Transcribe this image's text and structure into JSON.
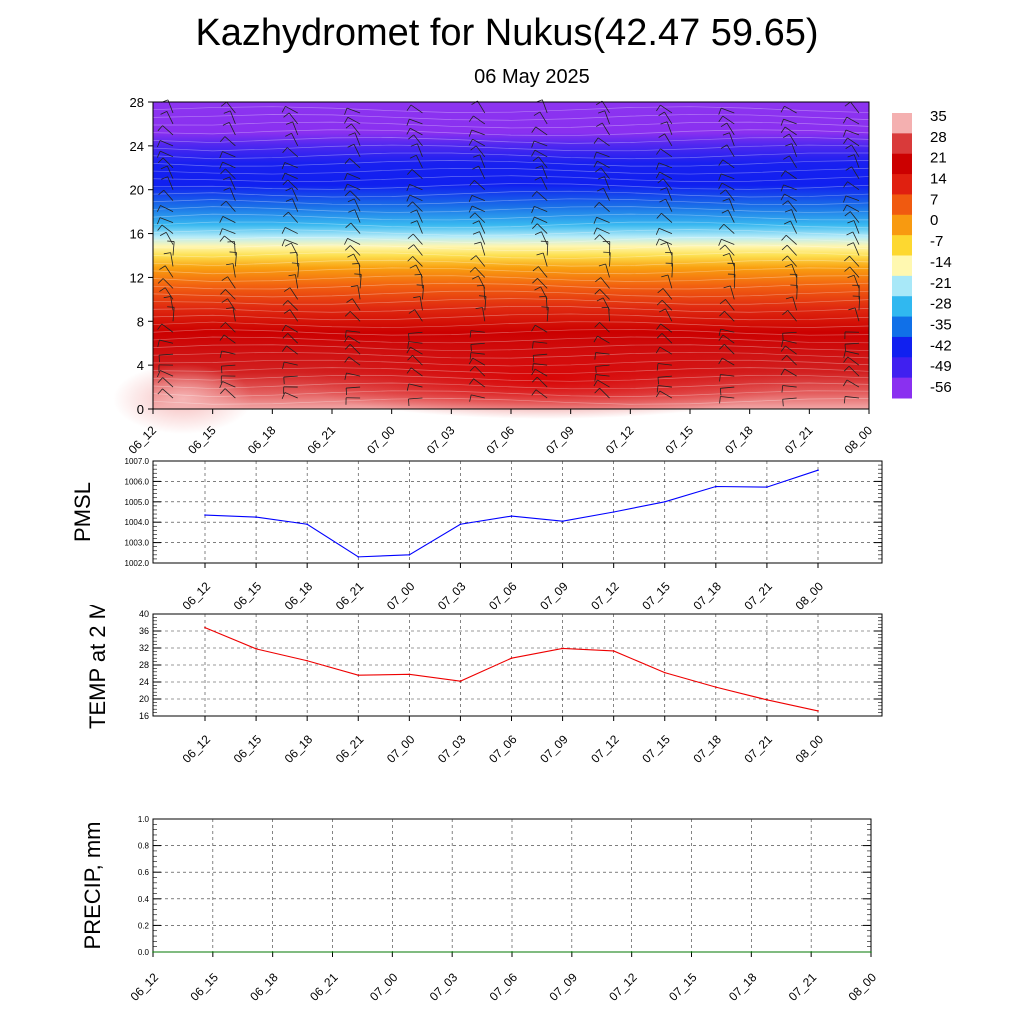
{
  "title": "Kazhydromet for Nukus(42.47 59.65)",
  "subtitle": "06 May 2025",
  "chart_data": [
    {
      "type": "heatmap",
      "title": "",
      "xlabel": "",
      "ylabel": "",
      "x_ticks": [
        "06_12",
        "06_15",
        "06_18",
        "06_21",
        "07_00",
        "07_03",
        "07_06",
        "07_09",
        "07_12",
        "07_15",
        "07_18",
        "07_21",
        "08_00"
      ],
      "y_ticks": [
        0,
        4,
        8,
        12,
        16,
        20,
        24,
        28
      ],
      "ylim": [
        0,
        28
      ],
      "colorbar_labels": [
        "35",
        "28",
        "21",
        "14",
        "7",
        "0",
        "-7",
        "-14",
        "-21",
        "-28",
        "-35",
        "-42",
        "-49",
        "-56"
      ],
      "colormap": [
        "#f4b0b0",
        "#d93a3a",
        "#cc0000",
        "#e02010",
        "#f05a10",
        "#f89a10",
        "#fdd830",
        "#fff8b0",
        "#a8e8f8",
        "#30b8f0",
        "#1070e8",
        "#1020f0",
        "#4020f0",
        "#8a30f0"
      ],
      "contour_field": "temperature by height",
      "wind_barbs": true
    },
    {
      "type": "line",
      "ylabel": "PMSL",
      "ylim": [
        1002.0,
        1007.0
      ],
      "y_ticks": [
        "1002.0",
        "1003.0",
        "1004.0",
        "1005.0",
        "1006.0",
        "1007.0"
      ],
      "categories": [
        "06_12",
        "06_15",
        "06_18",
        "06_21",
        "07_00",
        "07_03",
        "07_06",
        "07_09",
        "07_12",
        "07_15",
        "07_18",
        "07_21",
        "08_00"
      ],
      "values": [
        1004.35,
        1004.25,
        1003.9,
        1002.3,
        1002.4,
        1003.9,
        1004.3,
        1004.05,
        1004.5,
        1005.0,
        1005.75,
        1005.72,
        1006.55
      ],
      "color": "#0000ff",
      "grid": true
    },
    {
      "type": "line",
      "ylabel": "TEMP at 2 M",
      "ylim": [
        16,
        40
      ],
      "y_ticks": [
        "16",
        "20",
        "24",
        "28",
        "32",
        "36",
        "40"
      ],
      "categories": [
        "06_12",
        "06_15",
        "06_18",
        "06_21",
        "07_00",
        "07_03",
        "07_06",
        "07_09",
        "07_12",
        "07_15",
        "07_18",
        "07_21",
        "08_00"
      ],
      "values": [
        36.8,
        31.8,
        29.0,
        25.6,
        25.8,
        24.2,
        29.6,
        31.9,
        31.3,
        26.2,
        22.8,
        19.8,
        17.2
      ],
      "color": "#ee0000",
      "grid": true
    },
    {
      "type": "line",
      "ylabel": "PRECIP, mm",
      "ylim": [
        0.0,
        1.0
      ],
      "y_ticks": [
        "0.0",
        "0.2",
        "0.4",
        "0.6",
        "0.8",
        "1.0"
      ],
      "categories": [
        "06_12",
        "06_15",
        "06_18",
        "06_21",
        "07_00",
        "07_03",
        "07_06",
        "07_09",
        "07_12",
        "07_15",
        "07_18",
        "07_21",
        "08_00"
      ],
      "values": [
        0,
        0,
        0,
        0,
        0,
        0,
        0,
        0,
        0,
        0,
        0,
        0,
        0
      ],
      "color": "#007700",
      "grid": true
    }
  ]
}
